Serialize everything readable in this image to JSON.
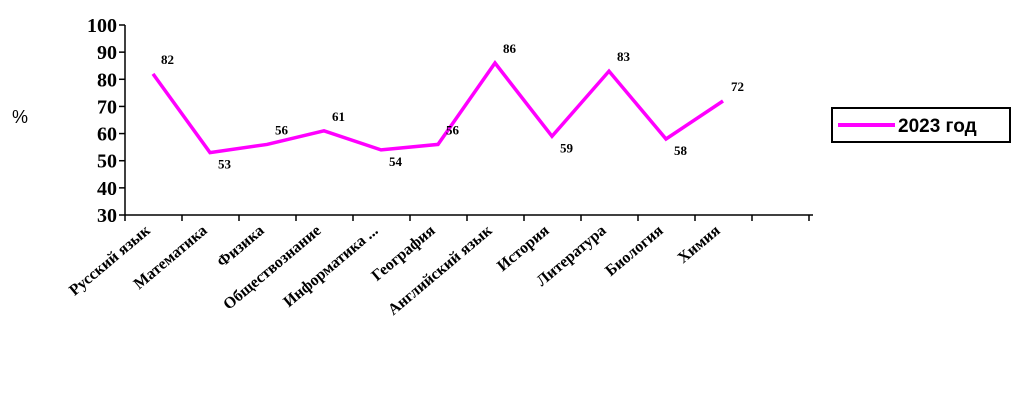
{
  "chart_data": {
    "type": "line",
    "categories": [
      "Русский язык",
      "Математика",
      "Физика",
      "Обществознание",
      "Информатика ...",
      "География",
      "Английский язык",
      "История",
      "Литература",
      "Биология",
      "Химия"
    ],
    "series": [
      {
        "name": "2023 год",
        "values": [
          82,
          53,
          56,
          61,
          54,
          56,
          86,
          59,
          83,
          58,
          72
        ],
        "color": "#ff00ff"
      }
    ],
    "ylabel": "%",
    "ylim": [
      30,
      100
    ],
    "yticks": [
      "30",
      "40",
      "50",
      "60",
      "70",
      "80",
      "90",
      "100"
    ],
    "grid": false,
    "legend_position": "right"
  }
}
